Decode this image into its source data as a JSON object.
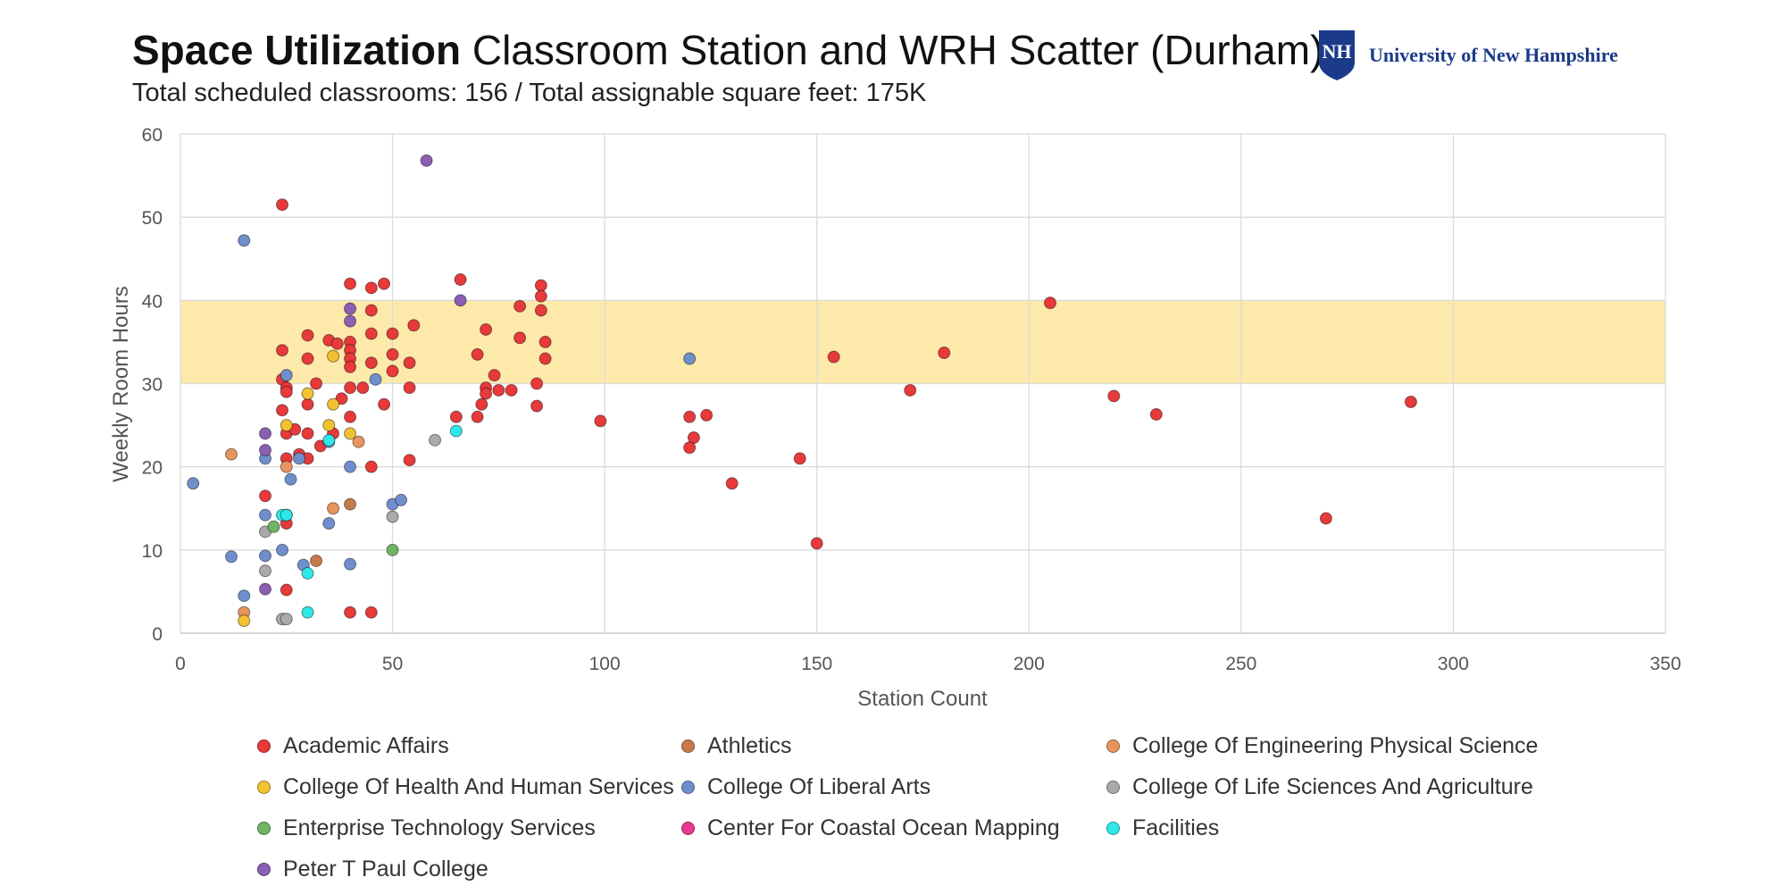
{
  "header": {
    "title_bold": "Space Utilization",
    "title_rest": "Classroom Station and WRH Scatter (Durham)",
    "subtitle": "Total scheduled classrooms: 156 / Total assignable square feet: 175K"
  },
  "logo": {
    "text": "University of New Hampshire",
    "mark": "NH",
    "icon": "unh-shield-logo"
  },
  "chart_data": {
    "type": "scatter",
    "xlabel": "Station Count",
    "ylabel": "Weekly Room Hours",
    "xlim": [
      0,
      350
    ],
    "ylim": [
      0,
      60
    ],
    "xticks": [
      0,
      50,
      100,
      150,
      200,
      250,
      300,
      350
    ],
    "yticks": [
      0,
      10,
      20,
      30,
      40,
      50,
      60
    ],
    "grid": true,
    "legend_position": "bottom",
    "target_band": {
      "y_from": 30,
      "y_to": 40,
      "color": "#fde9a9"
    },
    "series": [
      {
        "name": "Academic Affairs",
        "color": "#e8393b",
        "points": [
          [
            24,
            51.5
          ],
          [
            40,
            42
          ],
          [
            48,
            42
          ],
          [
            45,
            41.5
          ],
          [
            66,
            42.5
          ],
          [
            85,
            41.8
          ],
          [
            85,
            40.5
          ],
          [
            80,
            39.3
          ],
          [
            85,
            38.8
          ],
          [
            45,
            38.8
          ],
          [
            55,
            37
          ],
          [
            72,
            36.5
          ],
          [
            80,
            35.5
          ],
          [
            86,
            35
          ],
          [
            30,
            35.8
          ],
          [
            35,
            35.2
          ],
          [
            37,
            34.8
          ],
          [
            40,
            35
          ],
          [
            45,
            36
          ],
          [
            50,
            36
          ],
          [
            24,
            34
          ],
          [
            40,
            34
          ],
          [
            40,
            33
          ],
          [
            45,
            32.5
          ],
          [
            50,
            33.5
          ],
          [
            54,
            32.5
          ],
          [
            70,
            33.5
          ],
          [
            86,
            33
          ],
          [
            30,
            33
          ],
          [
            40,
            32
          ],
          [
            50,
            31.5
          ],
          [
            24,
            30.5
          ],
          [
            32,
            30
          ],
          [
            74,
            31
          ],
          [
            84,
            30
          ],
          [
            25,
            29.5
          ],
          [
            40,
            29.5
          ],
          [
            43,
            29.5
          ],
          [
            54,
            29.5
          ],
          [
            72,
            29.5
          ],
          [
            75,
            29.2
          ],
          [
            78,
            29.2
          ],
          [
            72,
            28.8
          ],
          [
            30,
            27.5
          ],
          [
            25,
            29
          ],
          [
            38,
            28.2
          ],
          [
            48,
            27.5
          ],
          [
            71,
            27.5
          ],
          [
            84,
            27.3
          ],
          [
            24,
            26.8
          ],
          [
            40,
            26
          ],
          [
            65,
            26
          ],
          [
            70,
            26
          ],
          [
            25,
            24
          ],
          [
            27,
            24.5
          ],
          [
            30,
            24
          ],
          [
            36,
            24
          ],
          [
            33,
            22.5
          ],
          [
            28,
            21.5
          ],
          [
            25,
            21
          ],
          [
            30,
            21
          ],
          [
            45,
            20
          ],
          [
            54,
            20.8
          ],
          [
            20,
            16.5
          ],
          [
            25,
            13.2
          ],
          [
            25,
            5.2
          ],
          [
            40,
            2.5
          ],
          [
            45,
            2.5
          ],
          [
            99,
            25.5
          ],
          [
            120,
            26
          ],
          [
            124,
            26.2
          ],
          [
            121,
            23.5
          ],
          [
            120,
            22.3
          ],
          [
            130,
            18
          ],
          [
            146,
            21
          ],
          [
            150,
            10.8
          ],
          [
            154,
            33.2
          ],
          [
            172,
            29.2
          ],
          [
            180,
            33.7
          ],
          [
            205,
            39.7
          ],
          [
            220,
            28.5
          ],
          [
            230,
            26.3
          ],
          [
            270,
            13.8
          ],
          [
            290,
            27.8
          ]
        ]
      },
      {
        "name": "Athletics",
        "color": "#c77a4a",
        "points": [
          [
            40,
            15.5
          ],
          [
            32,
            8.7
          ]
        ]
      },
      {
        "name": "College Of Engineering Physical Science",
        "color": "#e8945f",
        "points": [
          [
            12,
            21.5
          ],
          [
            25,
            20
          ],
          [
            42,
            23
          ],
          [
            36,
            15
          ],
          [
            15,
            2.5
          ]
        ]
      },
      {
        "name": "College Of Health And Human Services",
        "color": "#f2c230",
        "points": [
          [
            36,
            33.3
          ],
          [
            36,
            27.5
          ],
          [
            30,
            28.8
          ],
          [
            25,
            25
          ],
          [
            35,
            25
          ],
          [
            40,
            24
          ],
          [
            15,
            1.5
          ]
        ]
      },
      {
        "name": "College Of Liberal Arts",
        "color": "#6f8fcc",
        "points": [
          [
            15,
            47.2
          ],
          [
            3,
            18
          ],
          [
            20,
            21
          ],
          [
            25,
            31
          ],
          [
            26,
            18.5
          ],
          [
            28,
            21
          ],
          [
            35,
            23
          ],
          [
            40,
            20
          ],
          [
            46,
            30.5
          ],
          [
            20,
            14.2
          ],
          [
            25,
            14.2
          ],
          [
            35,
            13.2
          ],
          [
            50,
            15.5
          ],
          [
            52,
            16
          ],
          [
            12,
            9.2
          ],
          [
            20,
            9.3
          ],
          [
            24,
            10
          ],
          [
            29,
            8.2
          ],
          [
            40,
            8.3
          ],
          [
            15,
            4.5
          ],
          [
            120,
            33
          ]
        ]
      },
      {
        "name": "College Of Life Sciences And Agriculture",
        "color": "#aaaaaa",
        "points": [
          [
            20,
            12.2
          ],
          [
            20,
            7.5
          ],
          [
            50,
            14
          ],
          [
            60,
            23.2
          ],
          [
            24,
            1.7
          ],
          [
            25,
            1.7
          ]
        ]
      },
      {
        "name": "Enterprise Technology Services",
        "color": "#6fb562",
        "points": [
          [
            22,
            12.8
          ],
          [
            50,
            10
          ]
        ]
      },
      {
        "name": "Center For Coastal Ocean Mapping",
        "color": "#e8388f",
        "points": []
      },
      {
        "name": "Facilities",
        "color": "#2ee8e8",
        "points": [
          [
            24,
            14.2
          ],
          [
            25,
            14.2
          ],
          [
            35,
            23.2
          ],
          [
            65,
            24.3
          ],
          [
            30,
            7.2
          ],
          [
            30,
            2.5
          ]
        ]
      },
      {
        "name": "Peter T Paul College",
        "color": "#8b5fb3",
        "points": [
          [
            58,
            56.8
          ],
          [
            66,
            40
          ],
          [
            40,
            39
          ],
          [
            40,
            37.5
          ],
          [
            20,
            24
          ],
          [
            20,
            22
          ],
          [
            20,
            5.3
          ]
        ]
      }
    ]
  }
}
